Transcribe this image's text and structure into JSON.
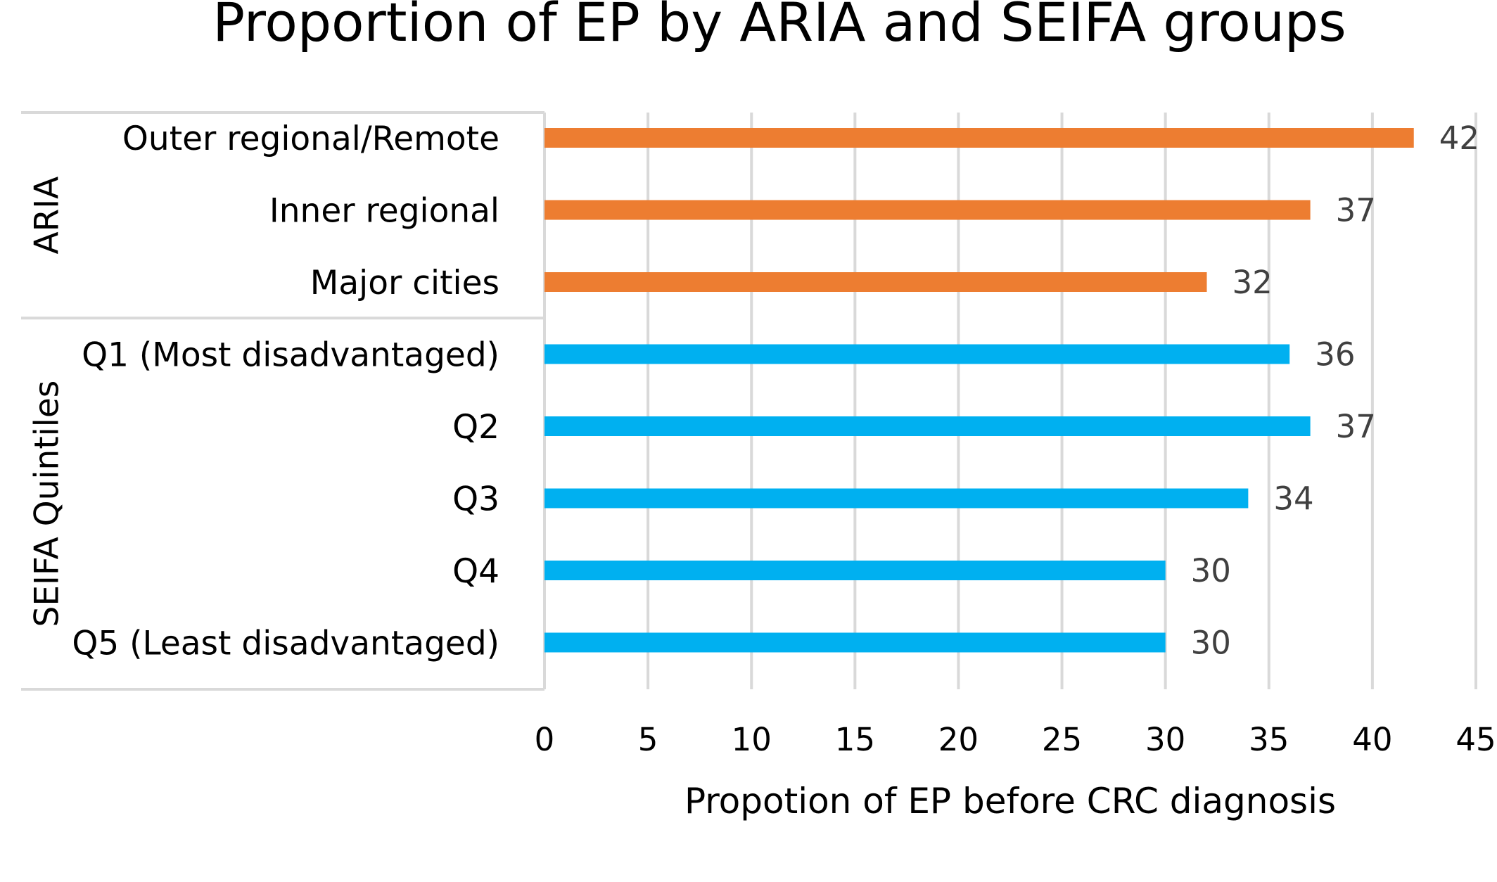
{
  "chart_data": {
    "type": "bar",
    "orientation": "horizontal",
    "title": "Proportion of EP by ARIA and SEIFA groups",
    "xlabel": "Propotion of EP before CRC diagnosis",
    "ylabel": "",
    "xlim": [
      0,
      45
    ],
    "x_ticks": [
      0,
      5,
      10,
      15,
      20,
      25,
      30,
      35,
      40,
      45
    ],
    "grid": true,
    "legend": "none",
    "groups": [
      {
        "name": "ARIA",
        "color": "#ed7d31",
        "categories": [
          "Outer regional/Remote",
          "Inner regional",
          "Major cities"
        ],
        "values": [
          42,
          37,
          32
        ]
      },
      {
        "name": "SEIFA Quintiles",
        "color": "#00b0f0",
        "categories": [
          "Q1 (Most disadvantaged)",
          "Q2",
          "Q3",
          "Q4",
          "Q5 (Least disadvantaged)"
        ],
        "values": [
          36,
          37,
          34,
          30,
          30
        ]
      }
    ]
  }
}
